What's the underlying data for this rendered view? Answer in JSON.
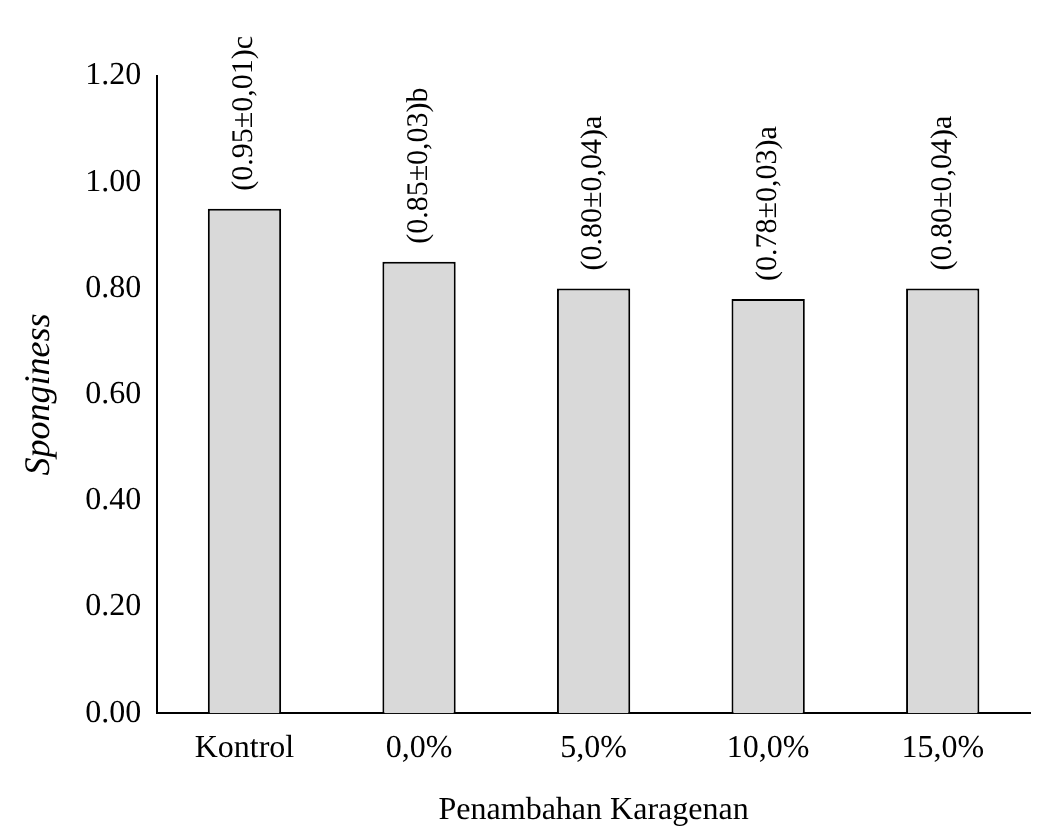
{
  "chart_data": {
    "type": "bar",
    "xlabel": "Penambahan Karagenan",
    "ylabel": "Sponginess",
    "categories": [
      "Kontrol",
      "0,0%",
      "5,0%",
      "10,0%",
      "15,0%"
    ],
    "values": [
      0.95,
      0.85,
      0.8,
      0.78,
      0.8
    ],
    "value_labels": [
      "(0.95±0,01)c",
      "(0.85±0,03)b",
      "(0.80±0,04)a",
      "(0.78±0,03)a",
      "(0.80±0,04)a"
    ],
    "color": "#d9d9d9",
    "ylim": [
      0,
      1.2
    ],
    "yticks": [
      {
        "value": 0,
        "label": "0.00"
      },
      {
        "value": 0.2,
        "label": "0.20"
      },
      {
        "value": 0.4,
        "label": "0.40"
      },
      {
        "value": 0.6,
        "label": "0.60"
      },
      {
        "value": 0.8,
        "label": "0.80"
      },
      {
        "value": 1.0,
        "label": "1.00"
      },
      {
        "value": 1.2,
        "label": "1.20"
      }
    ],
    "grid": false,
    "legend": false
  }
}
